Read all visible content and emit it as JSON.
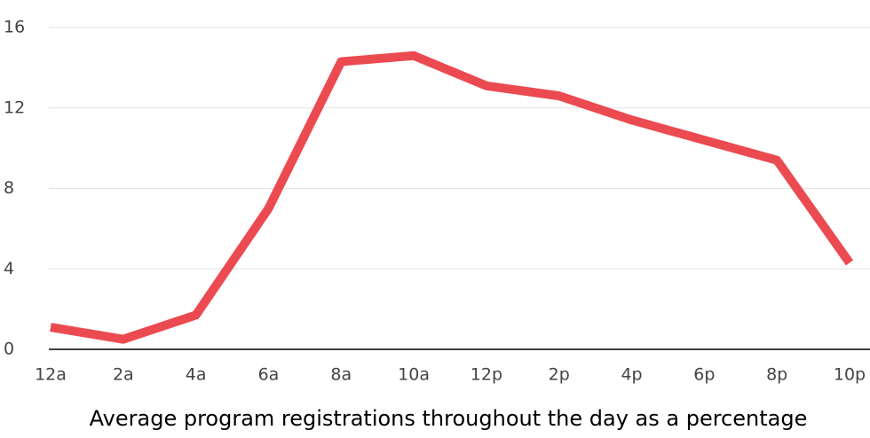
{
  "chart_data": {
    "type": "line",
    "x_label": "Average program registrations throughout the day as a percentage",
    "categories": [
      "12a",
      "2a",
      "4a",
      "6a",
      "8a",
      "10a",
      "12p",
      "2p",
      "4p",
      "6p",
      "8p",
      "10p"
    ],
    "values": [
      1.1,
      0.5,
      1.7,
      7.0,
      14.3,
      14.6,
      13.1,
      12.6,
      11.4,
      10.4,
      9.4,
      4.3
    ],
    "color": "#eb4b50",
    "ylim": [
      0,
      16
    ],
    "yticks": [
      0,
      4,
      8,
      12,
      16
    ],
    "grid": true
  }
}
